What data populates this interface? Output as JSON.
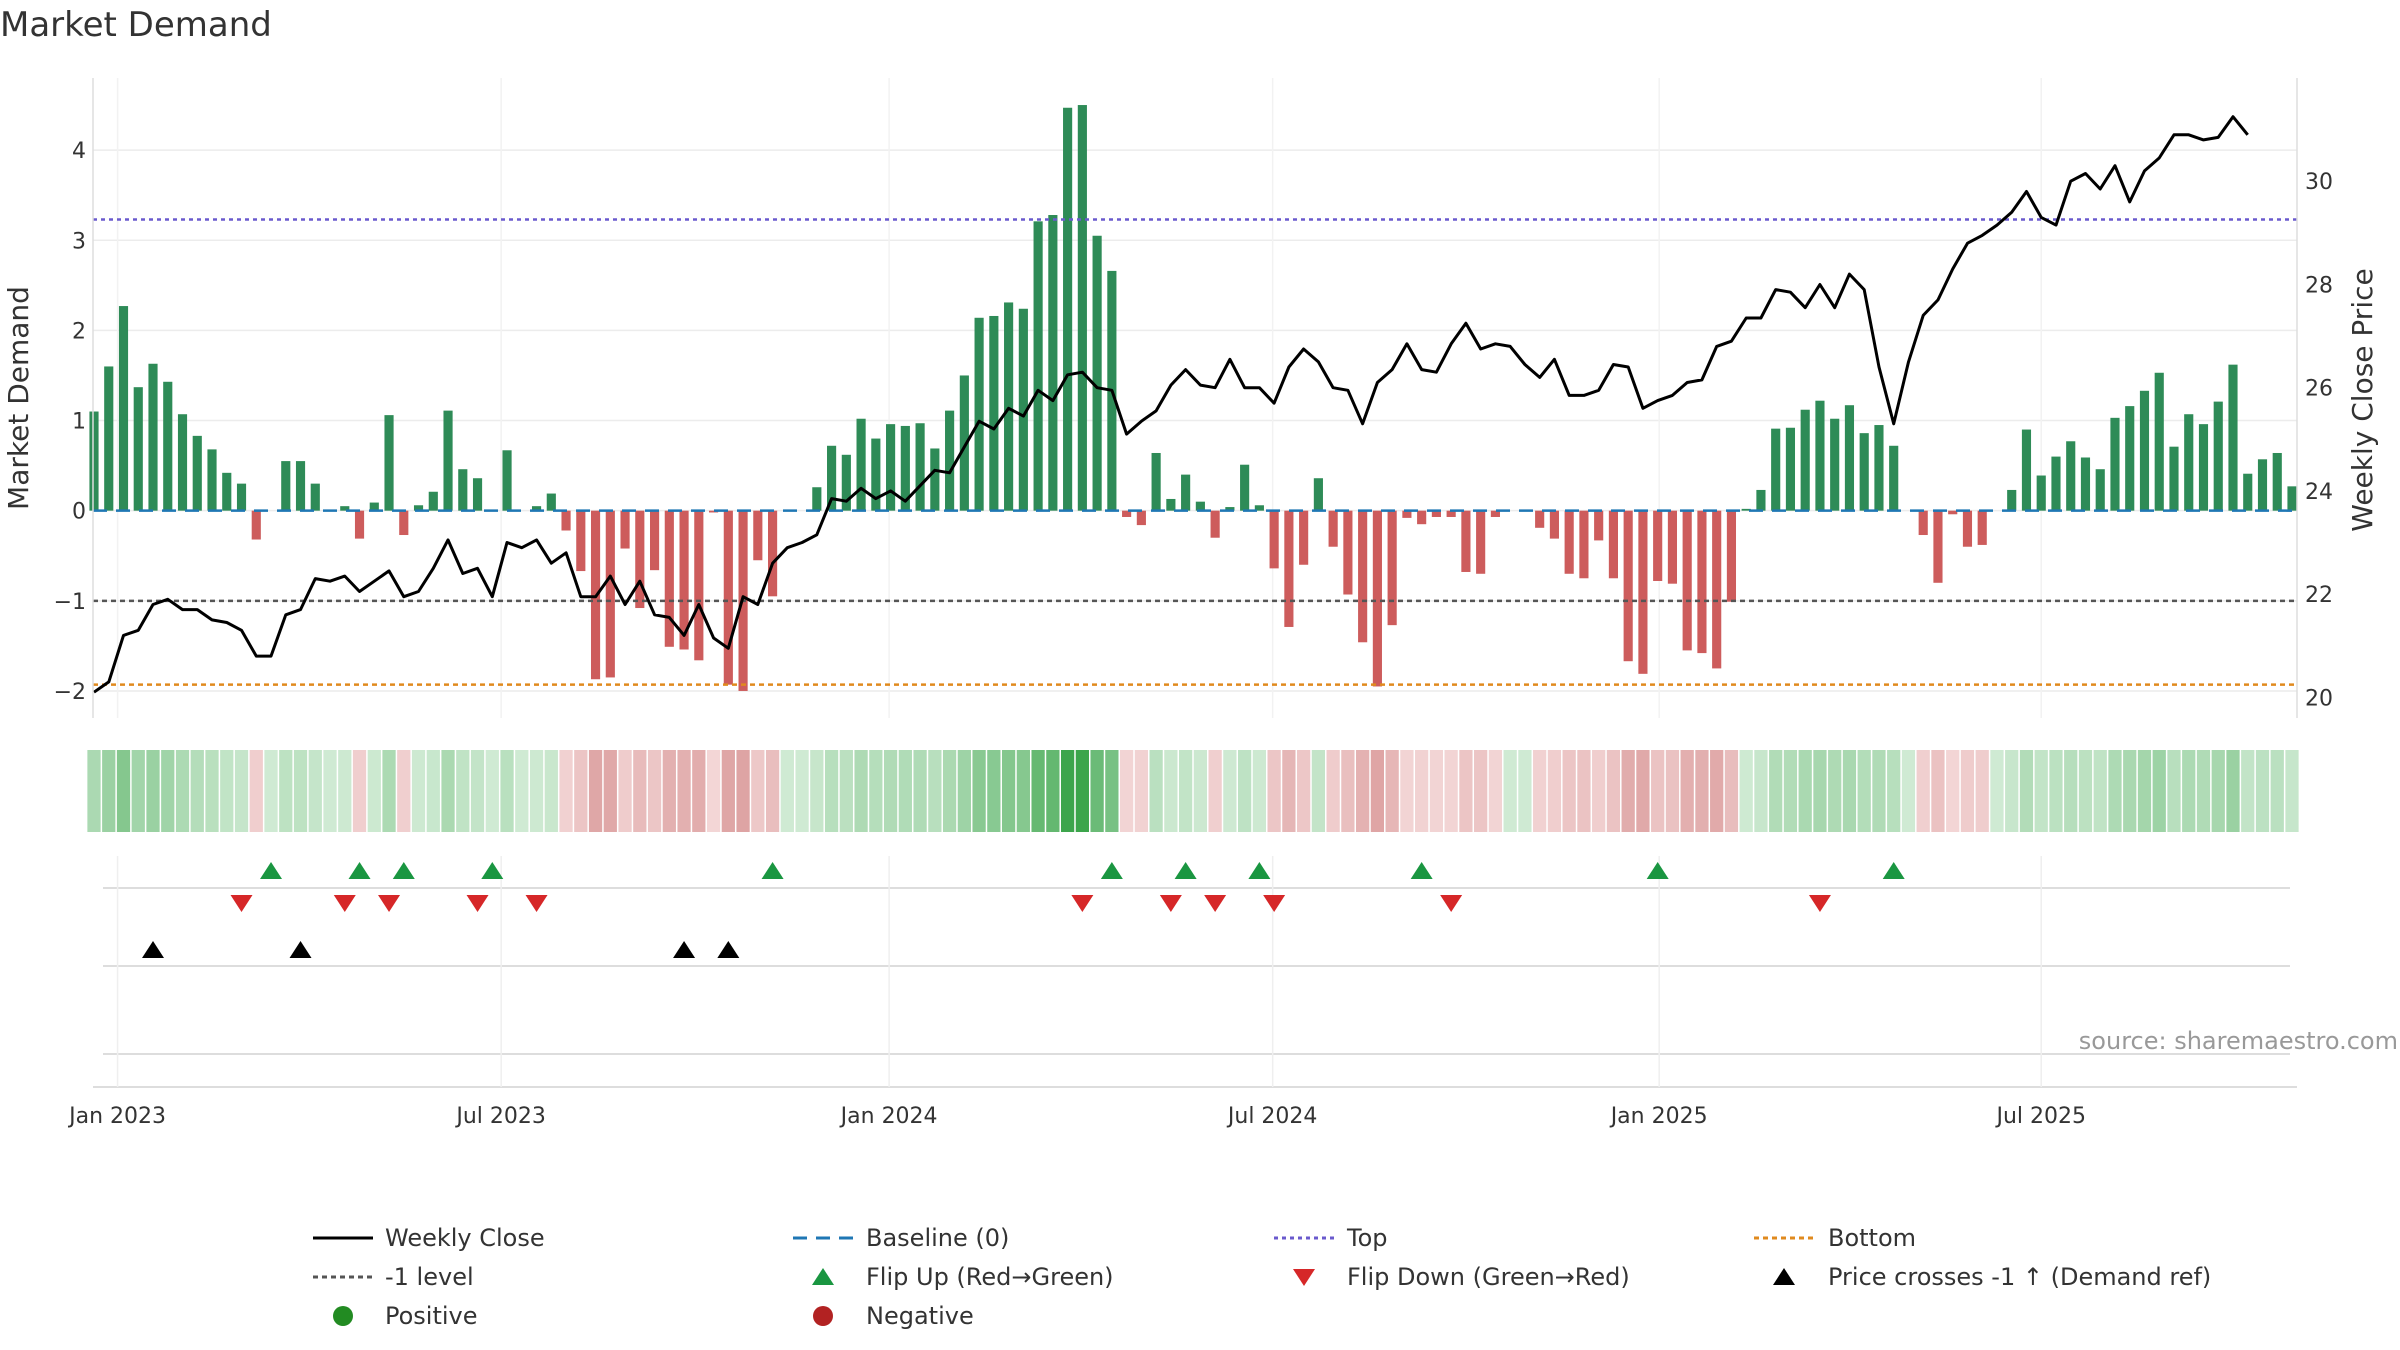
{
  "chart_data": {
    "type": "bar",
    "title": "Market Demand",
    "ylabel": "Market Demand",
    "y2label": "Weekly Close Price",
    "source": "source: sharemaestro.com",
    "ylim": [
      -2.3,
      4.8
    ],
    "y2lim": [
      19.6,
      32.0
    ],
    "yticks": [
      "4",
      "3",
      "2",
      "1",
      "0",
      "−1",
      "−2"
    ],
    "ytick_values": [
      4,
      3,
      2,
      1,
      0,
      -1,
      -2
    ],
    "y2ticks": [
      "30",
      "28",
      "26",
      "24",
      "22",
      "20"
    ],
    "y2tick_values": [
      30,
      28,
      26,
      24,
      22,
      20
    ],
    "x_start": "2023-01-01",
    "x_ticks": [
      "Jan 2023",
      "Jul 2023",
      "Jan 2024",
      "Jul 2024",
      "Jan 2025",
      "Jul 2025"
    ],
    "x_tick_weeks": [
      1.6,
      27.6,
      53.9,
      79.9,
      106.1,
      132.0
    ],
    "levels": {
      "top": 3.23,
      "minus_one": -1.0,
      "bottom": -1.93,
      "baseline": 0
    },
    "demand": [
      1.1,
      1.6,
      2.27,
      1.37,
      1.63,
      1.43,
      1.07,
      0.83,
      0.68,
      0.42,
      0.3,
      -0.32,
      0,
      0.55,
      0.55,
      0.3,
      0,
      0.05,
      -0.31,
      0.09,
      1.06,
      -0.27,
      0.06,
      0.21,
      1.11,
      0.46,
      0.36,
      0,
      0.67,
      0,
      0.05,
      0.19,
      -0.22,
      -0.67,
      -1.87,
      -1.85,
      -0.42,
      -1.08,
      -0.66,
      -1.51,
      -1.54,
      -1.66,
      -0.02,
      -1.93,
      -2.0,
      -0.55,
      -0.95,
      0,
      0,
      0.26,
      0.72,
      0.62,
      1.02,
      0.8,
      0.96,
      0.94,
      0.97,
      0.69,
      1.11,
      1.5,
      2.14,
      2.16,
      2.31,
      2.24,
      3.21,
      3.28,
      4.47,
      4.5,
      3.05,
      2.66,
      -0.07,
      -0.16,
      0.64,
      0.13,
      0.4,
      0.1,
      -0.3,
      0.04,
      0.51,
      0.06,
      -0.64,
      -1.29,
      -0.6,
      0.36,
      -0.4,
      -0.93,
      -1.46,
      -1.95,
      -1.27,
      -0.08,
      -0.15,
      -0.07,
      -0.07,
      -0.68,
      -0.7,
      -0.07,
      0,
      0,
      -0.19,
      -0.31,
      -0.7,
      -0.75,
      -0.33,
      -0.75,
      -1.67,
      -1.81,
      -0.78,
      -0.81,
      -1.55,
      -1.58,
      -1.75,
      -1.01,
      0.02,
      0.23,
      0.91,
      0.92,
      1.12,
      1.22,
      1.02,
      1.17,
      0.86,
      0.95,
      0.72,
      0,
      -0.27,
      -0.8,
      -0.04,
      -0.4,
      -0.38,
      0,
      0.23,
      0.9,
      0.39,
      0.6,
      0.77,
      0.59,
      0.46,
      1.03,
      1.16,
      1.33,
      1.53,
      0.71,
      1.07,
      0.96,
      1.21,
      1.62,
      0.41,
      0.57,
      0.64,
      0.27
    ],
    "weekly_close": [
      20.1,
      20.3,
      21.2,
      21.3,
      21.8,
      21.9,
      21.7,
      21.7,
      21.5,
      21.45,
      21.3,
      20.8,
      20.8,
      21.6,
      21.7,
      22.3,
      22.25,
      22.35,
      22.05,
      22.25,
      22.45,
      21.95,
      22.05,
      22.5,
      23.05,
      22.4,
      22.5,
      21.95,
      23.0,
      22.9,
      23.05,
      22.6,
      22.8,
      21.95,
      21.95,
      22.35,
      21.8,
      22.25,
      21.6,
      21.55,
      21.2,
      21.8,
      21.15,
      20.95,
      21.95,
      21.8,
      22.6,
      22.9,
      23.0,
      23.15,
      23.85,
      23.8,
      24.05,
      23.85,
      24.0,
      23.8,
      24.1,
      24.4,
      24.35,
      24.85,
      25.35,
      25.2,
      25.6,
      25.45,
      25.95,
      25.75,
      26.25,
      26.3,
      26.0,
      25.95,
      25.1,
      25.35,
      25.55,
      26.05,
      26.35,
      26.05,
      26.0,
      26.55,
      26.0,
      26.0,
      25.7,
      26.4,
      26.75,
      26.5,
      26.0,
      25.95,
      25.3,
      26.1,
      26.35,
      26.85,
      26.35,
      26.3,
      26.85,
      27.25,
      26.75,
      26.85,
      26.8,
      26.45,
      26.2,
      26.55,
      25.85,
      25.85,
      25.95,
      26.45,
      26.4,
      25.6,
      25.75,
      25.85,
      26.1,
      26.15,
      26.8,
      26.9,
      27.35,
      27.35,
      27.9,
      27.85,
      27.55,
      28.0,
      27.55,
      28.2,
      27.9,
      26.4,
      25.3,
      26.5,
      27.4,
      27.7,
      28.3,
      28.8,
      28.95,
      29.15,
      29.4,
      29.8,
      29.3,
      29.15,
      30.0,
      30.15,
      29.85,
      30.3,
      29.6,
      30.2,
      30.45,
      30.9,
      30.9,
      30.8,
      30.85,
      31.25,
      30.9
    ],
    "legend": [
      [
        "Weekly Close",
        "Baseline (0)",
        "Top",
        "Bottom"
      ],
      [
        "-1 level",
        "Flip Up (Red→Green)",
        "Flip Down (Green→Red)",
        "Price crosses -1 ↑ (Demand ref)"
      ],
      [
        "Positive",
        "Negative"
      ]
    ],
    "flip_up_weeks": [
      12,
      18,
      21,
      27,
      46,
      69,
      74,
      79,
      90,
      106,
      122
    ],
    "flip_down_weeks": [
      10,
      17,
      20,
      26,
      30,
      67,
      73,
      76,
      80,
      92,
      117
    ],
    "price_cross_weeks": [
      4,
      14,
      40,
      43
    ]
  },
  "colors": {
    "positive": "#2e8b57",
    "negative": "#cd5c5c",
    "line": "#000000",
    "baseline": "#1f77b4",
    "top": "#6a5acd",
    "minus_one": "#555555",
    "bottom": "#e08a1e",
    "flip_up": "#1a9641",
    "flip_down": "#d62728",
    "price_cross": "#000000",
    "legend_positive": "#228b22",
    "legend_negative": "#b22222"
  }
}
